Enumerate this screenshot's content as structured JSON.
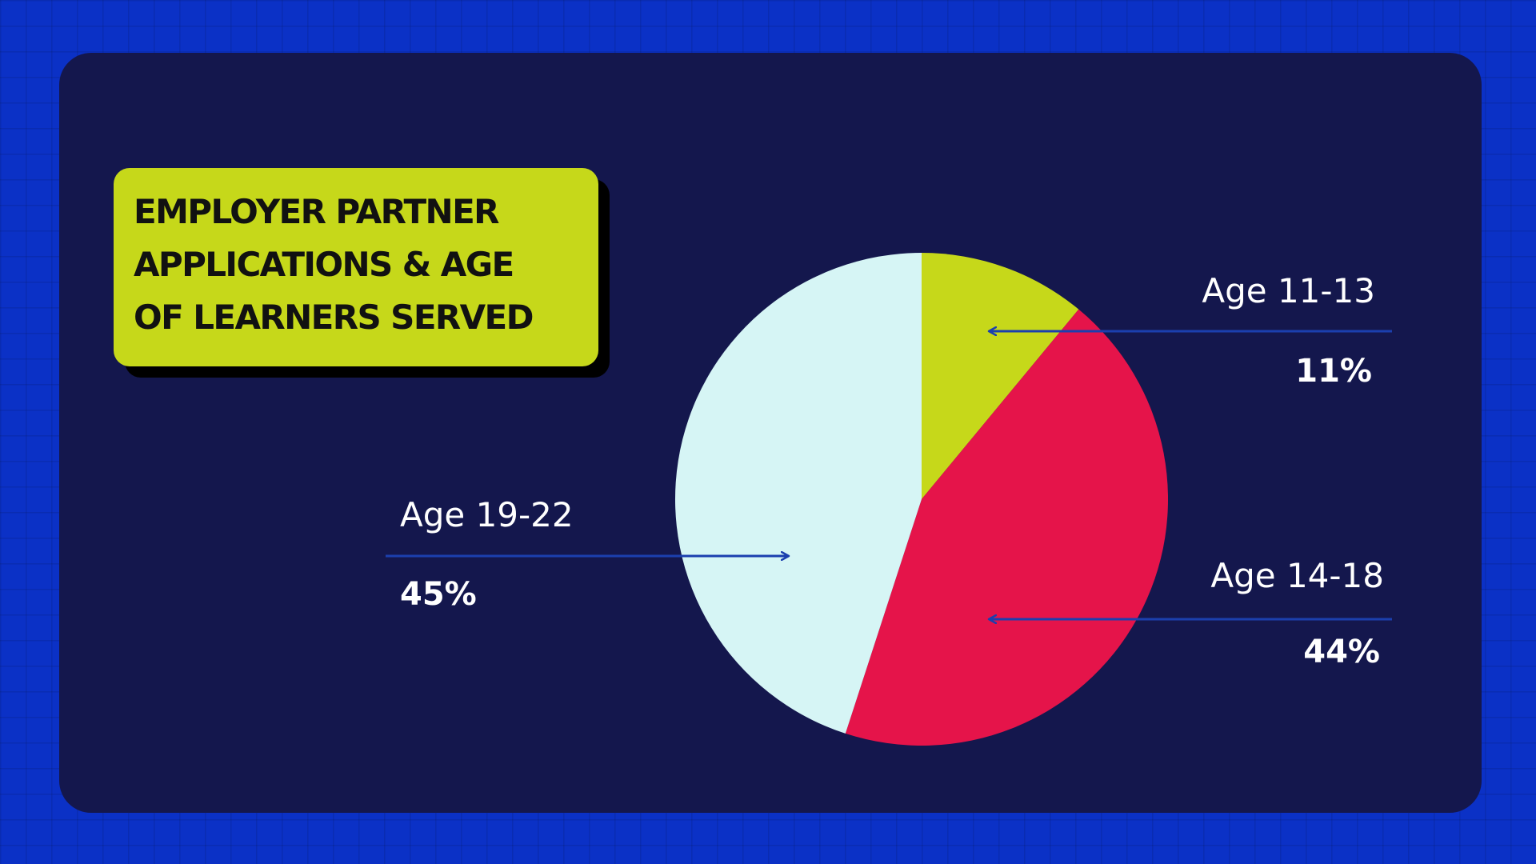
{
  "title_lines": [
    "EMPLOYER PARTNER",
    "APPLICATIONS & AGE",
    "OF LEARNERS SERVED"
  ],
  "colors": {
    "background": "#0b31c6",
    "panel": "#14174d",
    "title_box": "#c6d81a",
    "arrow": "#1b3fae"
  },
  "chart_data": {
    "type": "pie",
    "title": "EMPLOYER PARTNER APPLICATIONS & AGE OF LEARNERS SERVED",
    "start_angle_deg": 0,
    "direction": "clockwise",
    "slices": [
      {
        "label": "Age 11-13",
        "value": 11,
        "value_label": "11%",
        "color": "#c6d81a"
      },
      {
        "label": "Age 14-18",
        "value": 44,
        "value_label": "44%",
        "color": "#e5144a"
      },
      {
        "label": "Age 19-22",
        "value": 45,
        "value_label": "45%",
        "color": "#d6f5f5"
      }
    ]
  }
}
